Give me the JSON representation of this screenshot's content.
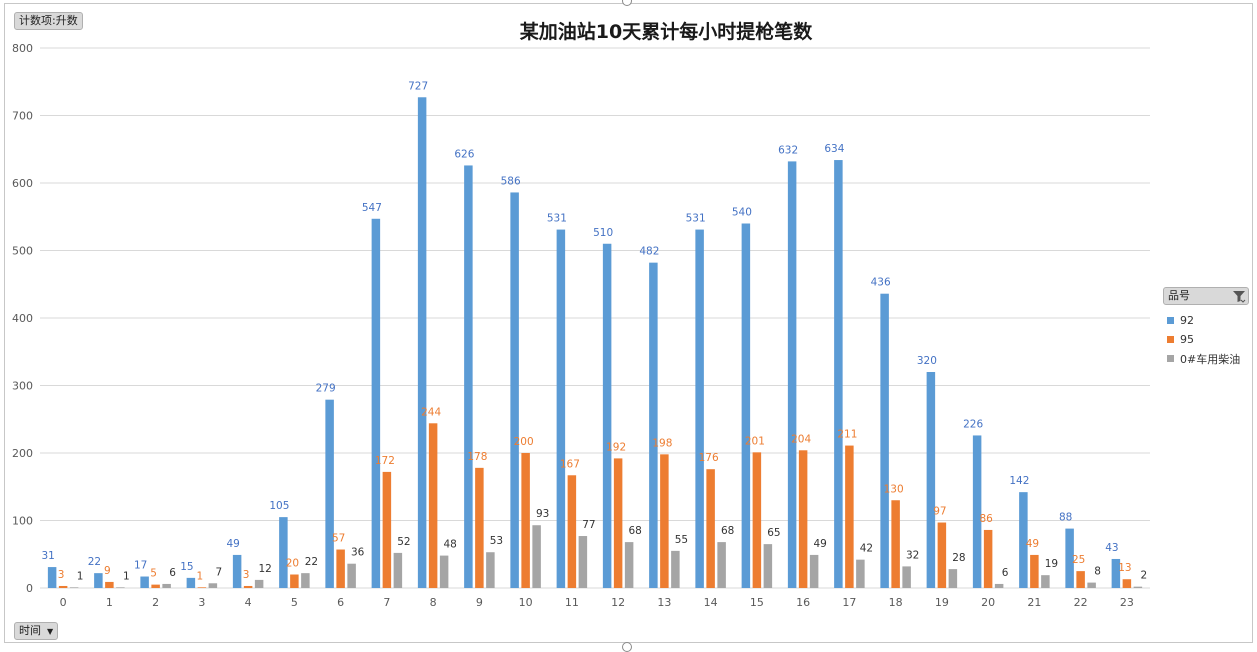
{
  "value_field_button": "计数项:升数",
  "axis_field_button": "时间",
  "legend_field_button": "品号",
  "legend_filter_icon": "filter-icon",
  "colors": {
    "s92": "#5b9bd5",
    "s95": "#ed7d31",
    "diesel": "#a5a5a5",
    "grid": "#d9d9d9"
  },
  "chart_data": {
    "type": "bar",
    "title": "某加油站10天累计每小时提枪笔数",
    "xlabel": "",
    "ylabel": "",
    "ylim": [
      0,
      800
    ],
    "yticks": [
      0,
      100,
      200,
      300,
      400,
      500,
      600,
      700,
      800
    ],
    "grid": true,
    "legend_position": "right",
    "categories": [
      "0",
      "1",
      "2",
      "3",
      "4",
      "5",
      "6",
      "7",
      "8",
      "9",
      "10",
      "11",
      "12",
      "13",
      "14",
      "15",
      "16",
      "17",
      "18",
      "19",
      "20",
      "21",
      "22",
      "23"
    ],
    "series": [
      {
        "name": "92",
        "color": "#5b9bd5",
        "label_color": "#4472c4",
        "values": [
          31,
          22,
          17,
          15,
          49,
          105,
          279,
          547,
          727,
          626,
          586,
          531,
          510,
          482,
          531,
          540,
          632,
          634,
          436,
          320,
          226,
          142,
          88,
          43
        ]
      },
      {
        "name": "95",
        "color": "#ed7d31",
        "label_color": "#ed7d31",
        "values": [
          3,
          9,
          5,
          1,
          3,
          20,
          57,
          172,
          244,
          178,
          200,
          167,
          192,
          198,
          176,
          201,
          204,
          211,
          130,
          97,
          86,
          49,
          25,
          13
        ]
      },
      {
        "name": "0#车用柴油",
        "color": "#a5a5a5",
        "label_color": "#333333",
        "values": [
          1,
          1,
          6,
          7,
          12,
          22,
          36,
          52,
          48,
          53,
          93,
          77,
          68,
          55,
          68,
          65,
          49,
          42,
          32,
          28,
          6,
          19,
          8,
          2
        ]
      }
    ]
  }
}
